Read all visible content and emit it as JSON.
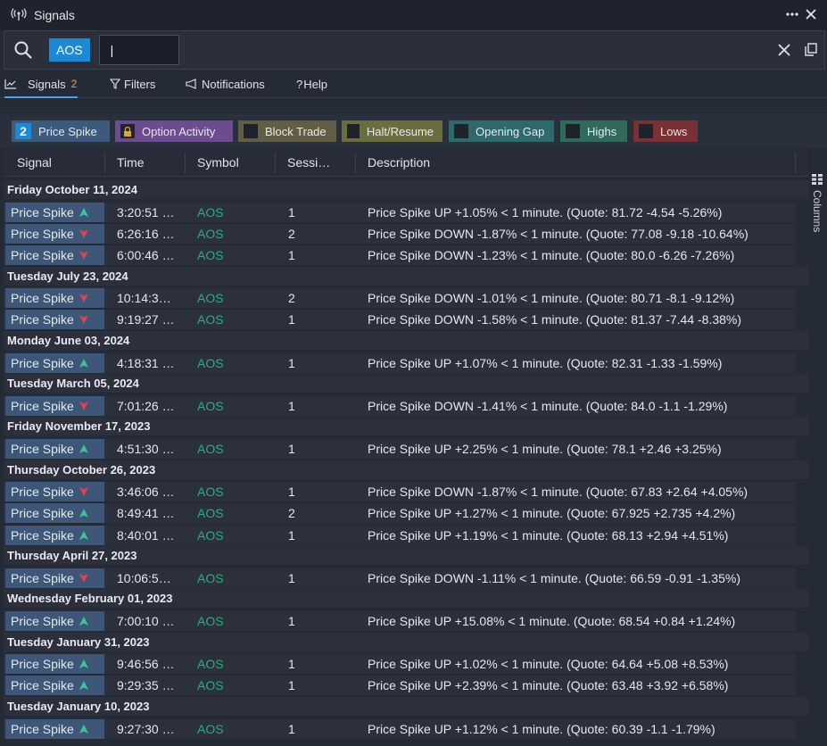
{
  "window": {
    "title": "Signals"
  },
  "search": {
    "chip": "AOS",
    "value": "|"
  },
  "tabs": [
    {
      "label": "Signals",
      "count": "2"
    },
    {
      "label": "Filters"
    },
    {
      "label": "Notifications"
    },
    {
      "label": "Help"
    }
  ],
  "filters": {
    "price_spike": {
      "count": "2",
      "label": "Price Spike"
    },
    "option_activity": "Option Activity",
    "block_trade": "Block Trade",
    "halt_resume": "Halt/Resume",
    "opening_gap": "Opening Gap",
    "highs": "Highs",
    "lows": "Lows"
  },
  "columns": {
    "signal": "Signal",
    "time": "Time",
    "symbol": "Symbol",
    "session": "Sessi…",
    "description": "Description"
  },
  "columns_rail_label": "Columns",
  "colors": {
    "up": "#3fc59a",
    "down": "#e0444f",
    "symbol": "#27b07c",
    "accent": "#1a8ad6"
  },
  "groups": [
    {
      "date": "Friday October 11, 2024",
      "rows": [
        {
          "signal": "Price Spike",
          "dir": "up",
          "time": "3:20:51 …",
          "symbol": "AOS",
          "session": "1",
          "desc": "Price Spike UP +1.05% < 1 minute. (Quote: 81.72 -4.54 -5.26%)"
        },
        {
          "signal": "Price Spike",
          "dir": "down",
          "time": "6:26:16 …",
          "symbol": "AOS",
          "session": "2",
          "desc": "Price Spike DOWN -1.87% < 1 minute. (Quote: 77.08 -9.18 -10.64%)"
        },
        {
          "signal": "Price Spike",
          "dir": "down",
          "time": "6:00:46 …",
          "symbol": "AOS",
          "session": "1",
          "desc": "Price Spike DOWN -1.23% < 1 minute. (Quote: 80.0 -6.26 -7.26%)"
        }
      ]
    },
    {
      "date": "Tuesday July 23, 2024",
      "rows": [
        {
          "signal": "Price Spike",
          "dir": "down",
          "time": "10:14:3…",
          "symbol": "AOS",
          "session": "2",
          "desc": "Price Spike DOWN -1.01% < 1 minute. (Quote: 80.71 -8.1 -9.12%)"
        },
        {
          "signal": "Price Spike",
          "dir": "down",
          "time": "9:19:27 …",
          "symbol": "AOS",
          "session": "1",
          "desc": "Price Spike DOWN -1.58% < 1 minute. (Quote: 81.37 -7.44 -8.38%)"
        }
      ]
    },
    {
      "date": "Monday June 03, 2024",
      "rows": [
        {
          "signal": "Price Spike",
          "dir": "up",
          "time": "4:18:31 …",
          "symbol": "AOS",
          "session": "1",
          "desc": "Price Spike UP +1.07% < 1 minute. (Quote: 82.31 -1.33 -1.59%)"
        }
      ]
    },
    {
      "date": "Tuesday March 05, 2024",
      "rows": [
        {
          "signal": "Price Spike",
          "dir": "down",
          "time": "7:01:26 …",
          "symbol": "AOS",
          "session": "1",
          "desc": "Price Spike DOWN -1.41% < 1 minute. (Quote: 84.0 -1.1 -1.29%)"
        }
      ]
    },
    {
      "date": "Friday November 17, 2023",
      "rows": [
        {
          "signal": "Price Spike",
          "dir": "up",
          "time": "4:51:30 …",
          "symbol": "AOS",
          "session": "1",
          "desc": "Price Spike UP +2.25% < 1 minute. (Quote: 78.1 +2.46 +3.25%)"
        }
      ]
    },
    {
      "date": "Thursday October 26, 2023",
      "rows": [
        {
          "signal": "Price Spike",
          "dir": "down",
          "time": "3:46:06 …",
          "symbol": "AOS",
          "session": "1",
          "desc": "Price Spike DOWN -1.87% < 1 minute. (Quote: 67.83 +2.64 +4.05%)"
        },
        {
          "signal": "Price Spike",
          "dir": "up",
          "time": "8:49:41 …",
          "symbol": "AOS",
          "session": "2",
          "desc": "Price Spike UP +1.27% < 1 minute. (Quote: 67.925 +2.735 +4.2%)"
        },
        {
          "signal": "Price Spike",
          "dir": "up",
          "time": "8:40:01 …",
          "symbol": "AOS",
          "session": "1",
          "desc": "Price Spike UP +1.19% < 1 minute. (Quote: 68.13 +2.94 +4.51%)"
        }
      ]
    },
    {
      "date": "Thursday April 27, 2023",
      "rows": [
        {
          "signal": "Price Spike",
          "dir": "down",
          "time": "10:06:5…",
          "symbol": "AOS",
          "session": "1",
          "desc": "Price Spike DOWN -1.11% < 1 minute. (Quote: 66.59 -0.91 -1.35%)"
        }
      ]
    },
    {
      "date": "Wednesday February 01, 2023",
      "rows": [
        {
          "signal": "Price Spike",
          "dir": "up",
          "time": "7:00:10 …",
          "symbol": "AOS",
          "session": "1",
          "desc": "Price Spike UP +15.08% < 1 minute. (Quote: 68.54 +0.84 +1.24%)"
        }
      ]
    },
    {
      "date": "Tuesday January 31, 2023",
      "rows": [
        {
          "signal": "Price Spike",
          "dir": "up",
          "time": "9:46:56 …",
          "symbol": "AOS",
          "session": "1",
          "desc": "Price Spike UP +1.02% < 1 minute. (Quote: 64.64 +5.08 +8.53%)"
        },
        {
          "signal": "Price Spike",
          "dir": "up",
          "time": "9:29:35 …",
          "symbol": "AOS",
          "session": "1",
          "desc": "Price Spike UP +2.39% < 1 minute. (Quote: 63.48 +3.92 +6.58%)"
        }
      ]
    },
    {
      "date": "Tuesday January 10, 2023",
      "rows": [
        {
          "signal": "Price Spike",
          "dir": "up",
          "time": "9:27:30 …",
          "symbol": "AOS",
          "session": "1",
          "desc": "Price Spike UP +1.12% < 1 minute. (Quote: 60.39 -1.1 -1.79%)"
        }
      ]
    }
  ]
}
